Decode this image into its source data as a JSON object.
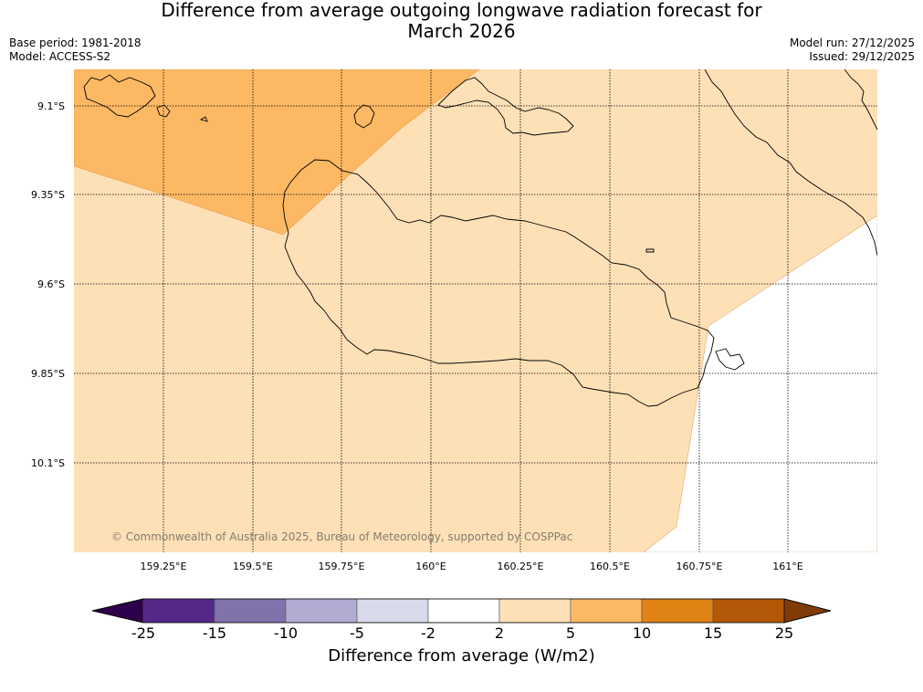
{
  "header": {
    "title_line1": "Difference from average outgoing longwave radiation forecast for",
    "title_line2": "March 2026",
    "base_period": "Base period: 1981-2018",
    "model": "Model: ACCESS-S2",
    "model_run": "Model run: 27/12/2025",
    "issued": "Issued: 29/12/2025"
  },
  "map": {
    "lat_labels": [
      "9.1°S",
      "9.35°S",
      "9.6°S",
      "9.85°S",
      "10.1°S"
    ],
    "lon_labels": [
      "159.25°E",
      "159.5°E",
      "159.75°E",
      "160°E",
      "160.25°E",
      "160.5°E",
      "160.75°E",
      "161°E"
    ],
    "copyright": "© Commonwealth of Australia 2025, Bureau of Meteorology, supported by COSPPac",
    "regions": [
      {
        "category": "5 to 10",
        "color": "#fdb863"
      },
      {
        "category": "2 to 5",
        "color": "#fee0b6"
      },
      {
        "category": "-2 to 2",
        "color": "#ffffff"
      }
    ]
  },
  "colorbar": {
    "label": "Difference from average (W/m2)",
    "ticks": [
      "-25",
      "-15",
      "-10",
      "-5",
      "-2",
      "2",
      "5",
      "10",
      "15",
      "25"
    ],
    "colors": [
      "#542788",
      "#8073ac",
      "#b2abd2",
      "#d8daeb",
      "#ffffff",
      "#fee0b6",
      "#fdb863",
      "#e08214",
      "#b35806"
    ],
    "under_color": "#2d004b",
    "over_color": "#7f3b08"
  }
}
